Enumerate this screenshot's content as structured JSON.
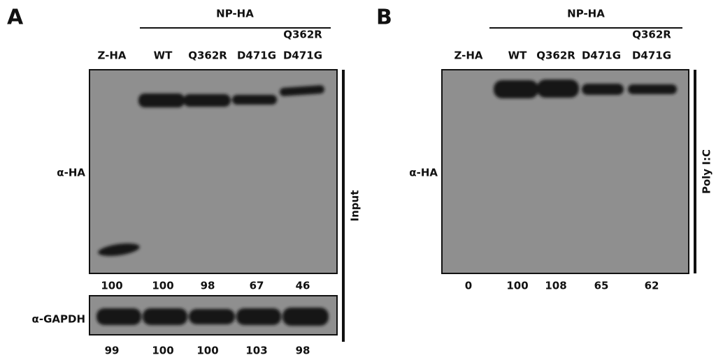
{
  "panels": [
    {
      "label": "A",
      "group": "NP-HA",
      "lanes": [
        [
          "Z-HA"
        ],
        [
          "WT"
        ],
        [
          "Q362R"
        ],
        [
          "D471G"
        ],
        [
          "Q362R",
          "D471G"
        ]
      ],
      "blots": [
        {
          "antibody": "α-HA",
          "quantification": [
            "100",
            "100",
            "98",
            "67",
            "46"
          ]
        },
        {
          "antibody": "α-GAPDH",
          "quantification": [
            "99",
            "100",
            "100",
            "103",
            "98"
          ]
        }
      ],
      "side_label": "Input"
    },
    {
      "label": "B",
      "group": "NP-HA",
      "lanes": [
        [
          "Z-HA"
        ],
        [
          "WT"
        ],
        [
          "Q362R"
        ],
        [
          "D471G"
        ],
        [
          "Q362R",
          "D471G"
        ]
      ],
      "blots": [
        {
          "antibody": "α-HA",
          "quantification": [
            "0",
            "100",
            "108",
            "65",
            "62"
          ]
        }
      ],
      "side_label": "Poly I:C"
    }
  ]
}
